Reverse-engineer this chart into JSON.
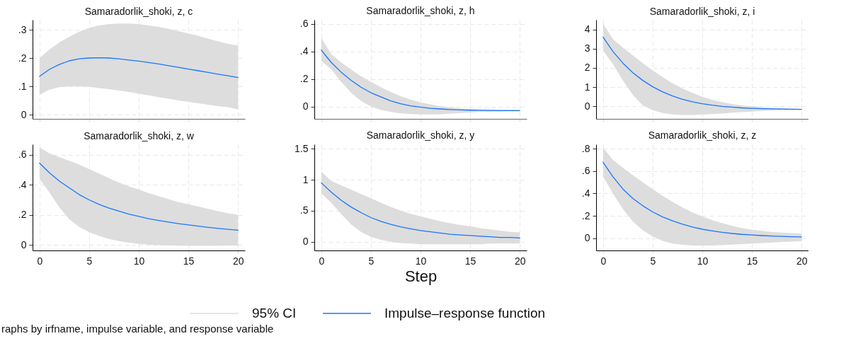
{
  "chart_data": [
    {
      "type": "line",
      "title": "Samaradorlik_shoki, z, c",
      "x": [
        0,
        1,
        2,
        3,
        4,
        5,
        6,
        7,
        8,
        9,
        10,
        11,
        12,
        13,
        14,
        15,
        16,
        17,
        18,
        19,
        20
      ],
      "xlim": [
        -0.7,
        20.7
      ],
      "xticks": [
        0,
        5,
        10,
        15,
        20
      ],
      "ylim": [
        -0.015,
        0.335
      ],
      "yticks": [
        0,
        {
          "value": 0.1,
          "label": ".1"
        },
        {
          "value": 0.2,
          "label": ".2"
        },
        {
          "value": 0.3,
          "label": ".3"
        }
      ],
      "grid": true,
      "tick_labels": "y",
      "legend": "bottom",
      "annotations": [
        "95% CI"
      ],
      "series": [
        {
          "name": "Impulse–response function",
          "type": "line",
          "color": "#1a75ff",
          "values": [
            0.135,
            0.16,
            0.177,
            0.19,
            0.197,
            0.2,
            0.201,
            0.2,
            0.197,
            0.193,
            0.189,
            0.184,
            0.179,
            0.173,
            0.167,
            0.161,
            0.155,
            0.149,
            0.143,
            0.137,
            0.131
          ],
          "lower": [
            0.07,
            0.088,
            0.097,
            0.1,
            0.1,
            0.098,
            0.094,
            0.09,
            0.085,
            0.08,
            0.074,
            0.068,
            0.062,
            0.056,
            0.05,
            0.045,
            0.04,
            0.035,
            0.03,
            0.026,
            0.018
          ],
          "upper": [
            0.2,
            0.23,
            0.255,
            0.275,
            0.293,
            0.306,
            0.315,
            0.32,
            0.322,
            0.322,
            0.32,
            0.315,
            0.31,
            0.303,
            0.295,
            0.287,
            0.278,
            0.268,
            0.259,
            0.25,
            0.244
          ]
        }
      ]
    },
    {
      "type": "line",
      "title": "Samaradorlik_shoki, z, h",
      "x": [
        0,
        1,
        2,
        3,
        4,
        5,
        6,
        7,
        8,
        9,
        10,
        11,
        12,
        13,
        14,
        15,
        16,
        17,
        18,
        19,
        20
      ],
      "xlim": [
        -0.7,
        20.7
      ],
      "xticks": [
        0,
        5,
        10,
        15,
        20
      ],
      "ylim": [
        -0.09,
        0.63
      ],
      "yticks": [
        0,
        {
          "value": 0.2,
          "label": ".2"
        },
        {
          "value": 0.4,
          "label": ".4"
        },
        {
          "value": 0.6,
          "label": ".6"
        }
      ],
      "grid": true,
      "tick_labels": "y",
      "legend": "bottom",
      "series": [
        {
          "name": "Impulse–response function",
          "type": "line",
          "color": "#1a75ff",
          "values": [
            0.41,
            0.32,
            0.25,
            0.19,
            0.14,
            0.1,
            0.07,
            0.04,
            0.02,
            0.005,
            -0.005,
            -0.013,
            -0.018,
            -0.022,
            -0.025,
            -0.027,
            -0.028,
            -0.029,
            -0.03,
            -0.03,
            -0.03
          ],
          "lower": [
            0.33,
            0.27,
            0.18,
            0.1,
            0.04,
            0.0,
            -0.025,
            -0.04,
            -0.05,
            -0.055,
            -0.058,
            -0.058,
            -0.056,
            -0.052,
            -0.048,
            -0.044,
            -0.04,
            -0.038,
            -0.036,
            -0.035,
            -0.035
          ],
          "upper": [
            0.5,
            0.38,
            0.32,
            0.27,
            0.22,
            0.18,
            0.14,
            0.105,
            0.075,
            0.05,
            0.03,
            0.015,
            0.003,
            -0.007,
            -0.013,
            -0.018,
            -0.02,
            -0.022,
            -0.023,
            -0.023,
            -0.024
          ]
        }
      ]
    },
    {
      "type": "line",
      "title": "Samaradorlik_shoki, z, i",
      "x": [
        0,
        1,
        2,
        3,
        4,
        5,
        6,
        7,
        8,
        9,
        10,
        11,
        12,
        13,
        14,
        15,
        16,
        17,
        18,
        19,
        20
      ],
      "xlim": [
        -0.7,
        20.7
      ],
      "xticks": [
        0,
        5,
        10,
        15,
        20
      ],
      "ylim": [
        -0.65,
        4.5
      ],
      "yticks": [
        0,
        1,
        2,
        3,
        4
      ],
      "grid": true,
      "tick_labels": "y",
      "legend": "bottom",
      "series": [
        {
          "name": "Impulse–response function",
          "type": "line",
          "color": "#1a75ff",
          "values": [
            3.6,
            2.85,
            2.25,
            1.75,
            1.35,
            1.02,
            0.75,
            0.54,
            0.37,
            0.24,
            0.14,
            0.06,
            0.0,
            -0.04,
            -0.08,
            -0.1,
            -0.12,
            -0.13,
            -0.14,
            -0.15,
            -0.16
          ],
          "lower": [
            2.9,
            2.2,
            1.35,
            0.6,
            0.05,
            -0.2,
            -0.35,
            -0.42,
            -0.45,
            -0.45,
            -0.43,
            -0.4,
            -0.37,
            -0.33,
            -0.3,
            -0.27,
            -0.24,
            -0.22,
            -0.2,
            -0.19,
            -0.18
          ],
          "upper": [
            4.3,
            3.5,
            3.05,
            2.65,
            2.25,
            1.87,
            1.52,
            1.2,
            0.93,
            0.7,
            0.5,
            0.34,
            0.22,
            0.12,
            0.05,
            0.0,
            -0.04,
            -0.07,
            -0.1,
            -0.12,
            -0.13
          ]
        }
      ]
    },
    {
      "type": "line",
      "title": "Samaradorlik_shoki, z, w",
      "x": [
        0,
        1,
        2,
        3,
        4,
        5,
        6,
        7,
        8,
        9,
        10,
        11,
        12,
        13,
        14,
        15,
        16,
        17,
        18,
        19,
        20
      ],
      "xlim": [
        -0.7,
        20.7
      ],
      "xticks": [
        0,
        5,
        10,
        15,
        20
      ],
      "ylim": [
        -0.037,
        0.67
      ],
      "yticks": [
        0,
        {
          "value": 0.2,
          "label": ".2"
        },
        {
          "value": 0.4,
          "label": ".4"
        },
        {
          "value": 0.6,
          "label": ".6"
        }
      ],
      "grid": true,
      "legend": "bottom",
      "annotations": [
        "raphs by irfname, impulse variable, and response variable"
      ],
      "series": [
        {
          "name": "Impulse–response function",
          "type": "line",
          "color": "#1a75ff",
          "values": [
            0.545,
            0.48,
            0.425,
            0.38,
            0.335,
            0.3,
            0.27,
            0.245,
            0.225,
            0.205,
            0.19,
            0.175,
            0.163,
            0.152,
            0.142,
            0.133,
            0.125,
            0.117,
            0.11,
            0.104,
            0.098
          ],
          "lower": [
            0.44,
            0.35,
            0.25,
            0.17,
            0.12,
            0.085,
            0.06,
            0.04,
            0.025,
            0.015,
            0.007,
            0.002,
            -0.002,
            -0.004,
            -0.005,
            -0.006,
            -0.006,
            -0.006,
            -0.005,
            -0.005,
            -0.005
          ],
          "upper": [
            0.65,
            0.61,
            0.585,
            0.56,
            0.535,
            0.505,
            0.475,
            0.445,
            0.415,
            0.39,
            0.37,
            0.345,
            0.325,
            0.305,
            0.285,
            0.27,
            0.255,
            0.24,
            0.225,
            0.21,
            0.2
          ]
        }
      ]
    },
    {
      "type": "line",
      "title": "Samaradorlik_shoki, z, y",
      "xlabel": "Step",
      "x": [
        0,
        1,
        2,
        3,
        4,
        5,
        6,
        7,
        8,
        9,
        10,
        11,
        12,
        13,
        14,
        15,
        16,
        17,
        18,
        19,
        20
      ],
      "xlim": [
        -0.7,
        20.7
      ],
      "xticks": [
        0,
        5,
        10,
        15,
        20
      ],
      "ylim": [
        -0.14,
        1.57
      ],
      "yticks": [
        0,
        {
          "value": 0.5,
          "label": ".5"
        },
        1,
        1.5
      ],
      "grid": true,
      "legend": "bottom",
      "series": [
        {
          "name": "Impulse–response function",
          "type": "line",
          "color": "#1a75ff",
          "values": [
            0.95,
            0.8,
            0.67,
            0.56,
            0.47,
            0.39,
            0.33,
            0.28,
            0.24,
            0.21,
            0.18,
            0.16,
            0.14,
            0.12,
            0.11,
            0.1,
            0.09,
            0.08,
            0.07,
            0.07,
            0.06
          ],
          "lower": [
            0.78,
            0.63,
            0.45,
            0.28,
            0.16,
            0.08,
            0.03,
            0.0,
            -0.02,
            -0.03,
            -0.04,
            -0.04,
            -0.04,
            -0.04,
            -0.04,
            -0.04,
            -0.04,
            -0.03,
            -0.03,
            -0.03,
            -0.03
          ],
          "upper": [
            1.13,
            0.98,
            0.91,
            0.84,
            0.77,
            0.7,
            0.63,
            0.56,
            0.5,
            0.45,
            0.41,
            0.37,
            0.33,
            0.3,
            0.27,
            0.25,
            0.22,
            0.2,
            0.18,
            0.16,
            0.15
          ]
        }
      ]
    },
    {
      "type": "line",
      "title": "Samaradorlik_shoki, z, z",
      "x": [
        0,
        1,
        2,
        3,
        4,
        5,
        6,
        7,
        8,
        9,
        10,
        11,
        12,
        13,
        14,
        15,
        16,
        17,
        18,
        19,
        20
      ],
      "xlim": [
        -0.7,
        20.7
      ],
      "xticks": [
        0,
        5,
        10,
        15,
        20
      ],
      "ylim": [
        -0.11,
        0.84
      ],
      "yticks": [
        0,
        {
          "value": 0.2,
          "label": ".2"
        },
        {
          "value": 0.4,
          "label": ".4"
        },
        {
          "value": 0.6,
          "label": ".6"
        },
        {
          "value": 0.8,
          "label": ".8"
        }
      ],
      "grid": true,
      "legend": "bottom",
      "series": [
        {
          "name": "Impulse–response function",
          "type": "line",
          "color": "#1a75ff",
          "values": [
            0.68,
            0.55,
            0.44,
            0.355,
            0.29,
            0.235,
            0.19,
            0.155,
            0.125,
            0.1,
            0.08,
            0.065,
            0.052,
            0.042,
            0.034,
            0.028,
            0.023,
            0.019,
            0.016,
            0.013,
            0.011
          ],
          "lower": [
            0.55,
            0.4,
            0.26,
            0.15,
            0.07,
            0.015,
            -0.025,
            -0.048,
            -0.06,
            -0.065,
            -0.067,
            -0.066,
            -0.062,
            -0.058,
            -0.053,
            -0.048,
            -0.043,
            -0.038,
            -0.034,
            -0.031,
            -0.028
          ],
          "upper": [
            0.81,
            0.7,
            0.63,
            0.565,
            0.5,
            0.44,
            0.38,
            0.325,
            0.275,
            0.23,
            0.195,
            0.16,
            0.135,
            0.11,
            0.09,
            0.075,
            0.065,
            0.055,
            0.05,
            0.045,
            0.04
          ]
        }
      ]
    }
  ]
}
